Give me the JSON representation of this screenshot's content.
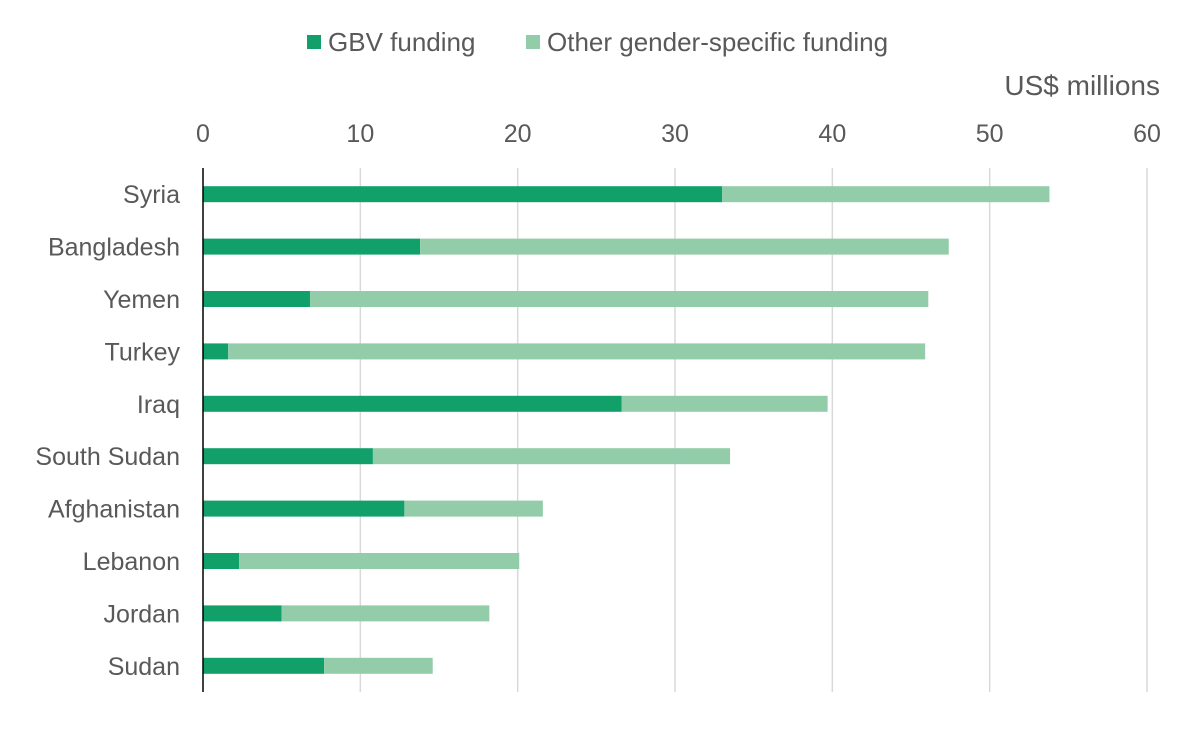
{
  "chart_data": {
    "type": "bar",
    "orientation": "horizontal",
    "stacked": true,
    "categories": [
      "Syria",
      "Bangladesh",
      "Yemen",
      "Turkey",
      "Iraq",
      "South Sudan",
      "Afghanistan",
      "Lebanon",
      "Jordan",
      "Sudan"
    ],
    "series": [
      {
        "name": "GBV funding",
        "color": "#12a06a",
        "values": [
          33.0,
          13.8,
          6.8,
          1.6,
          26.6,
          10.8,
          12.8,
          2.3,
          5.0,
          7.7
        ]
      },
      {
        "name": "Other gender-specific funding",
        "color": "#93cca8",
        "values": [
          20.8,
          33.6,
          39.3,
          44.3,
          13.1,
          22.7,
          8.8,
          17.8,
          13.2,
          6.9
        ]
      }
    ],
    "unit_label": "US$ millions",
    "xlim": [
      0,
      60
    ],
    "xticks": [
      "0",
      "10",
      "20",
      "30",
      "40",
      "50",
      "60"
    ],
    "grid": true,
    "legend_position": "top"
  }
}
